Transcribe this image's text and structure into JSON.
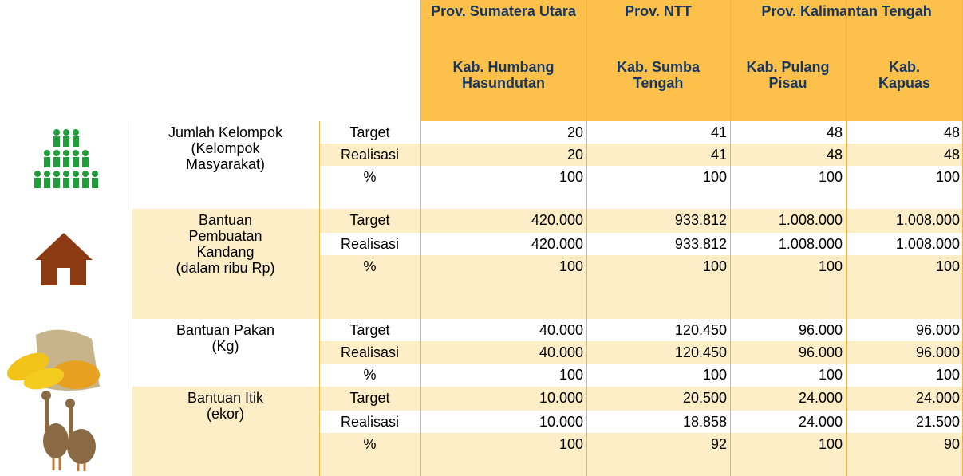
{
  "header": {
    "provinces": [
      "Prov. Sumatera Utara",
      "Prov. NTT",
      "Prov. Kalimantan Tengah"
    ],
    "regencies": [
      "Kab. Humbang Hasundutan",
      "Kab. Sumba Tengah",
      "Kab. Pulang Pisau",
      "Kab. Kapuas"
    ]
  },
  "groups": [
    {
      "label": [
        "Jumlah Kelompok",
        "(Kelompok",
        "Masyarakat)"
      ],
      "rows": [
        {
          "metric": "Target",
          "values": [
            "20",
            "41",
            "48",
            "48"
          ]
        },
        {
          "metric": "Realisasi",
          "values": [
            "20",
            "41",
            "48",
            "48"
          ]
        },
        {
          "metric": "%",
          "values": [
            "100",
            "100",
            "100",
            "100"
          ]
        }
      ]
    },
    {
      "label": [
        "Bantuan",
        "Pembuatan",
        "Kandang",
        "(dalam ribu Rp)"
      ],
      "rows": [
        {
          "metric": "Target",
          "values": [
            "420.000",
            "933.812",
            "1.008.000",
            "1.008.000"
          ]
        },
        {
          "metric": "Realisasi",
          "values": [
            "420.000",
            "933.812",
            "1.008.000",
            "1.008.000"
          ]
        },
        {
          "metric": "%",
          "values": [
            "100",
            "100",
            "100",
            "100"
          ]
        }
      ]
    },
    {
      "label": [
        "Bantuan Pakan",
        "(Kg)"
      ],
      "rows": [
        {
          "metric": "Target",
          "values": [
            "40.000",
            "120.450",
            "96.000",
            "96.000"
          ]
        },
        {
          "metric": "Realisasi",
          "values": [
            "40.000",
            "120.450",
            "96.000",
            "96.000"
          ]
        },
        {
          "metric": "%",
          "values": [
            "100",
            "100",
            "100",
            "100"
          ]
        }
      ]
    },
    {
      "label": [
        "Bantuan Itik",
        "(ekor)"
      ],
      "rows": [
        {
          "metric": "Target",
          "values": [
            "10.000",
            "20.500",
            "24.000",
            "24.000"
          ]
        },
        {
          "metric": "Realisasi",
          "values": [
            "10.000",
            "18.858",
            "24.000",
            "21.500"
          ]
        },
        {
          "metric": "%",
          "values": [
            "100",
            "92",
            "100",
            "90"
          ]
        }
      ]
    }
  ]
}
